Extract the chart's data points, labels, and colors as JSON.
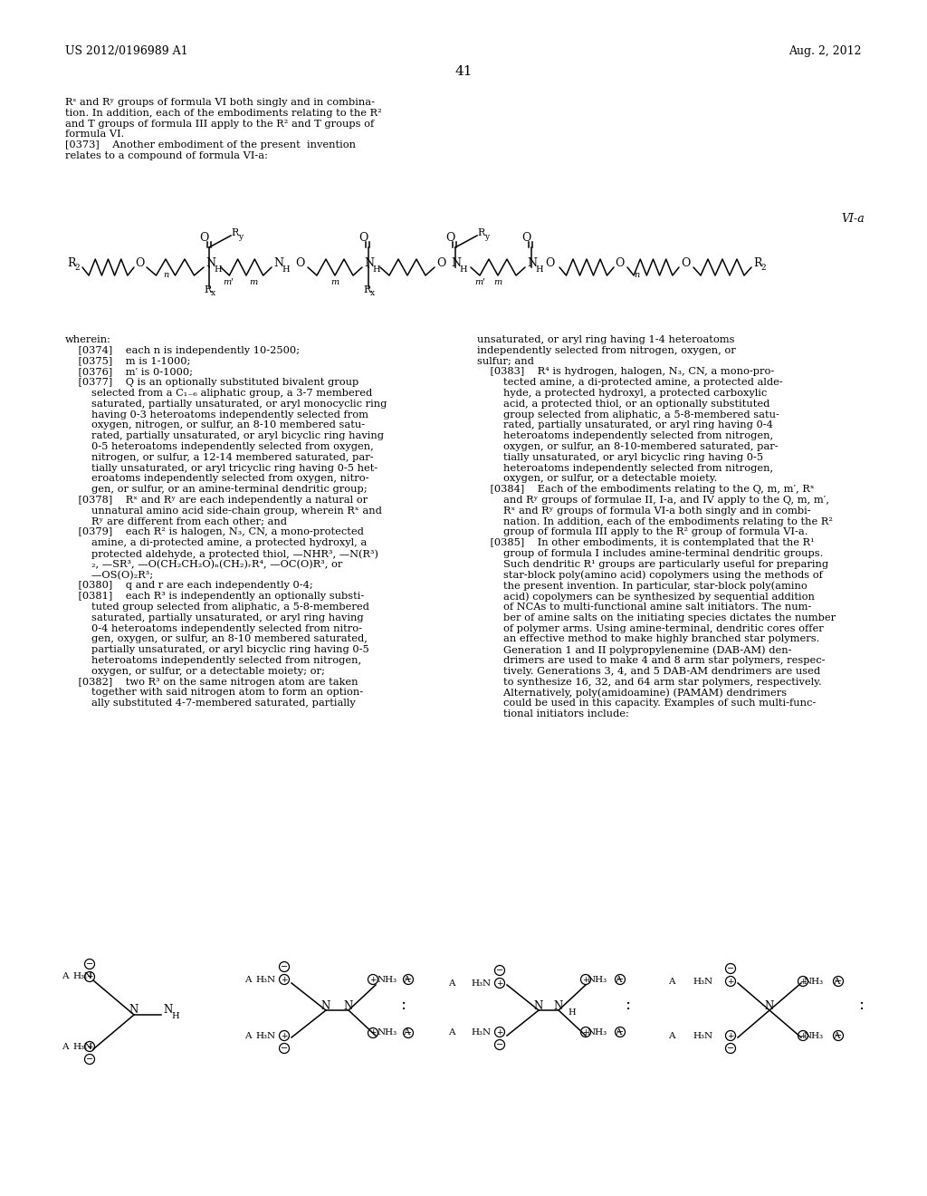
{
  "background_color": "#ffffff",
  "header_left": "US 2012/0196989 A1",
  "header_right": "Aug. 2, 2012",
  "page_number": "41",
  "formula_label": "VI-a",
  "figsize": [
    10.24,
    13.2
  ],
  "dpi": 100
}
